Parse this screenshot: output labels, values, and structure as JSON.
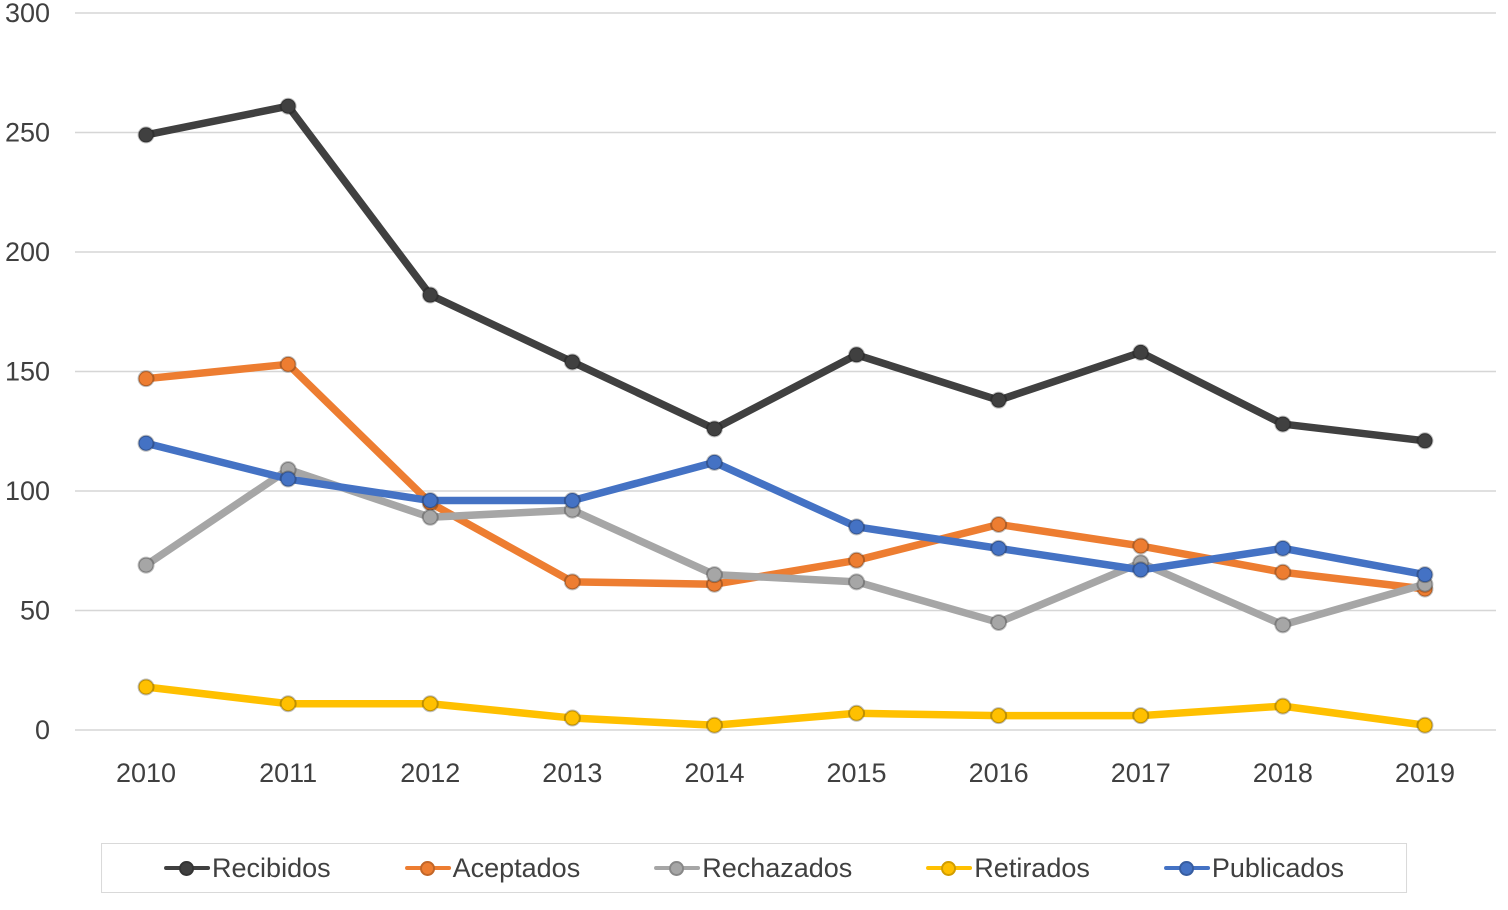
{
  "chart_data": {
    "type": "line",
    "title": "",
    "xlabel": "",
    "ylabel": "",
    "x": [
      "2010",
      "2011",
      "2012",
      "2013",
      "2014",
      "2015",
      "2016",
      "2017",
      "2018",
      "2019"
    ],
    "series": [
      {
        "name": "Recibidos",
        "color": "#404040",
        "values": [
          249,
          261,
          182,
          154,
          126,
          157,
          138,
          158,
          128,
          121
        ]
      },
      {
        "name": "Aceptados",
        "color": "#ED7D31",
        "values": [
          147,
          153,
          95,
          62,
          61,
          71,
          86,
          77,
          66,
          59
        ]
      },
      {
        "name": "Rechazados",
        "color": "#A6A6A6",
        "values": [
          69,
          109,
          89,
          92,
          65,
          62,
          45,
          70,
          44,
          61
        ]
      },
      {
        "name": "Retirados",
        "color": "#FFC000",
        "values": [
          18,
          11,
          11,
          5,
          2,
          7,
          6,
          6,
          10,
          2
        ]
      },
      {
        "name": "Publicados",
        "color": "#4472C4",
        "values": [
          120,
          105,
          96,
          96,
          112,
          85,
          76,
          67,
          76,
          65
        ]
      }
    ],
    "ylim": [
      0,
      300
    ],
    "yticks": [
      0,
      50,
      100,
      150,
      200,
      250,
      300
    ],
    "grid": true,
    "legend_position": "bottom",
    "axis_color": "#404040",
    "grid_color": "#D6D6D6"
  }
}
